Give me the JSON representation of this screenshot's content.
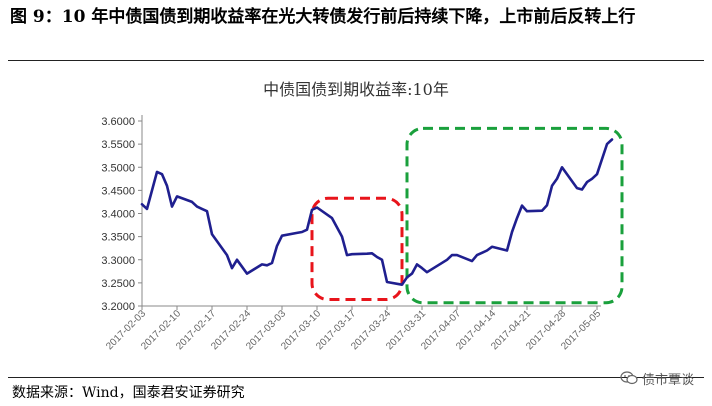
{
  "figure": {
    "title": "图 9：10 年中债国债到期收益率在光大转债发行前后持续下降，上市前后反转上行",
    "source": "数据来源：Wind，国泰君安证券研究",
    "watermark": "债市覃谈"
  },
  "chart_data": {
    "type": "line",
    "title": "中债国债到期收益率:10年",
    "ylim": [
      3.2,
      3.6
    ],
    "y_ticks": [
      "3.2000",
      "3.2500",
      "3.3000",
      "3.3500",
      "3.4000",
      "3.4500",
      "3.5000",
      "3.5500",
      "3.6000"
    ],
    "x_range": [
      "2017-02-03",
      "2017-05-05"
    ],
    "x_ticks": [
      "2017-02-03",
      "2017-02-10",
      "2017-02-17",
      "2017-02-24",
      "2017-03-03",
      "2017-03-10",
      "2017-03-17",
      "2017-03-24",
      "2017-03-31",
      "2017-04-07",
      "2017-04-14",
      "2017-04-21",
      "2017-04-28",
      "2017-05-05"
    ],
    "grid": false,
    "line_color": "#1f1f8f",
    "series": [
      {
        "values": [
          [
            "2017-02-03",
            3.42
          ],
          [
            "2017-02-04",
            3.41
          ],
          [
            "2017-02-06",
            3.49
          ],
          [
            "2017-02-07",
            3.485
          ],
          [
            "2017-02-08",
            3.46
          ],
          [
            "2017-02-09",
            3.415
          ],
          [
            "2017-02-10",
            3.437
          ],
          [
            "2017-02-13",
            3.425
          ],
          [
            "2017-02-14",
            3.415
          ],
          [
            "2017-02-15",
            3.41
          ],
          [
            "2017-02-16",
            3.405
          ],
          [
            "2017-02-17",
            3.355
          ],
          [
            "2017-02-20",
            3.31
          ],
          [
            "2017-02-21",
            3.282
          ],
          [
            "2017-02-22",
            3.3
          ],
          [
            "2017-02-23",
            3.285
          ],
          [
            "2017-02-24",
            3.27
          ],
          [
            "2017-02-27",
            3.29
          ],
          [
            "2017-02-28",
            3.288
          ],
          [
            "2017-03-01",
            3.293
          ],
          [
            "2017-03-02",
            3.33
          ],
          [
            "2017-03-03",
            3.352
          ],
          [
            "2017-03-06",
            3.358
          ],
          [
            "2017-03-07",
            3.36
          ],
          [
            "2017-03-08",
            3.365
          ],
          [
            "2017-03-09",
            3.408
          ],
          [
            "2017-03-10",
            3.413
          ],
          [
            "2017-03-13",
            3.39
          ],
          [
            "2017-03-14",
            3.37
          ],
          [
            "2017-03-15",
            3.35
          ],
          [
            "2017-03-16",
            3.31
          ],
          [
            "2017-03-17",
            3.312
          ],
          [
            "2017-03-20",
            3.313
          ],
          [
            "2017-03-21",
            3.314
          ],
          [
            "2017-03-22",
            3.306
          ],
          [
            "2017-03-23",
            3.3
          ],
          [
            "2017-03-24",
            3.252
          ],
          [
            "2017-03-27",
            3.246
          ],
          [
            "2017-03-28",
            3.262
          ],
          [
            "2017-03-29",
            3.27
          ],
          [
            "2017-03-30",
            3.29
          ],
          [
            "2017-03-31",
            3.282
          ],
          [
            "2017-04-01",
            3.273
          ],
          [
            "2017-04-05",
            3.3
          ],
          [
            "2017-04-06",
            3.31
          ],
          [
            "2017-04-07",
            3.31
          ],
          [
            "2017-04-10",
            3.297
          ],
          [
            "2017-04-11",
            3.31
          ],
          [
            "2017-04-12",
            3.315
          ],
          [
            "2017-04-13",
            3.32
          ],
          [
            "2017-04-14",
            3.328
          ],
          [
            "2017-04-17",
            3.32
          ],
          [
            "2017-04-18",
            3.36
          ],
          [
            "2017-04-19",
            3.39
          ],
          [
            "2017-04-20",
            3.417
          ],
          [
            "2017-04-21",
            3.405
          ],
          [
            "2017-04-24",
            3.406
          ],
          [
            "2017-04-25",
            3.418
          ],
          [
            "2017-04-26",
            3.46
          ],
          [
            "2017-04-27",
            3.475
          ],
          [
            "2017-04-28",
            3.5
          ],
          [
            "2017-05-01",
            3.455
          ],
          [
            "2017-05-02",
            3.452
          ],
          [
            "2017-05-03",
            3.468
          ],
          [
            "2017-05-04",
            3.475
          ],
          [
            "2017-05-05",
            3.485
          ],
          [
            "2017-05-07",
            3.55
          ],
          [
            "2017-05-08",
            3.56
          ]
        ]
      }
    ],
    "annotations": [
      {
        "shape": "rounded-rect",
        "style": "dashed",
        "color": "#e8141b",
        "x": [
          "2017-03-09",
          "2017-03-27"
        ],
        "y": [
          3.214,
          3.433
        ]
      },
      {
        "shape": "rounded-rect",
        "style": "dashed",
        "color": "#1aa03c",
        "x": [
          "2017-03-28",
          "2017-05-10"
        ],
        "y": [
          3.207,
          3.584
        ]
      }
    ]
  }
}
